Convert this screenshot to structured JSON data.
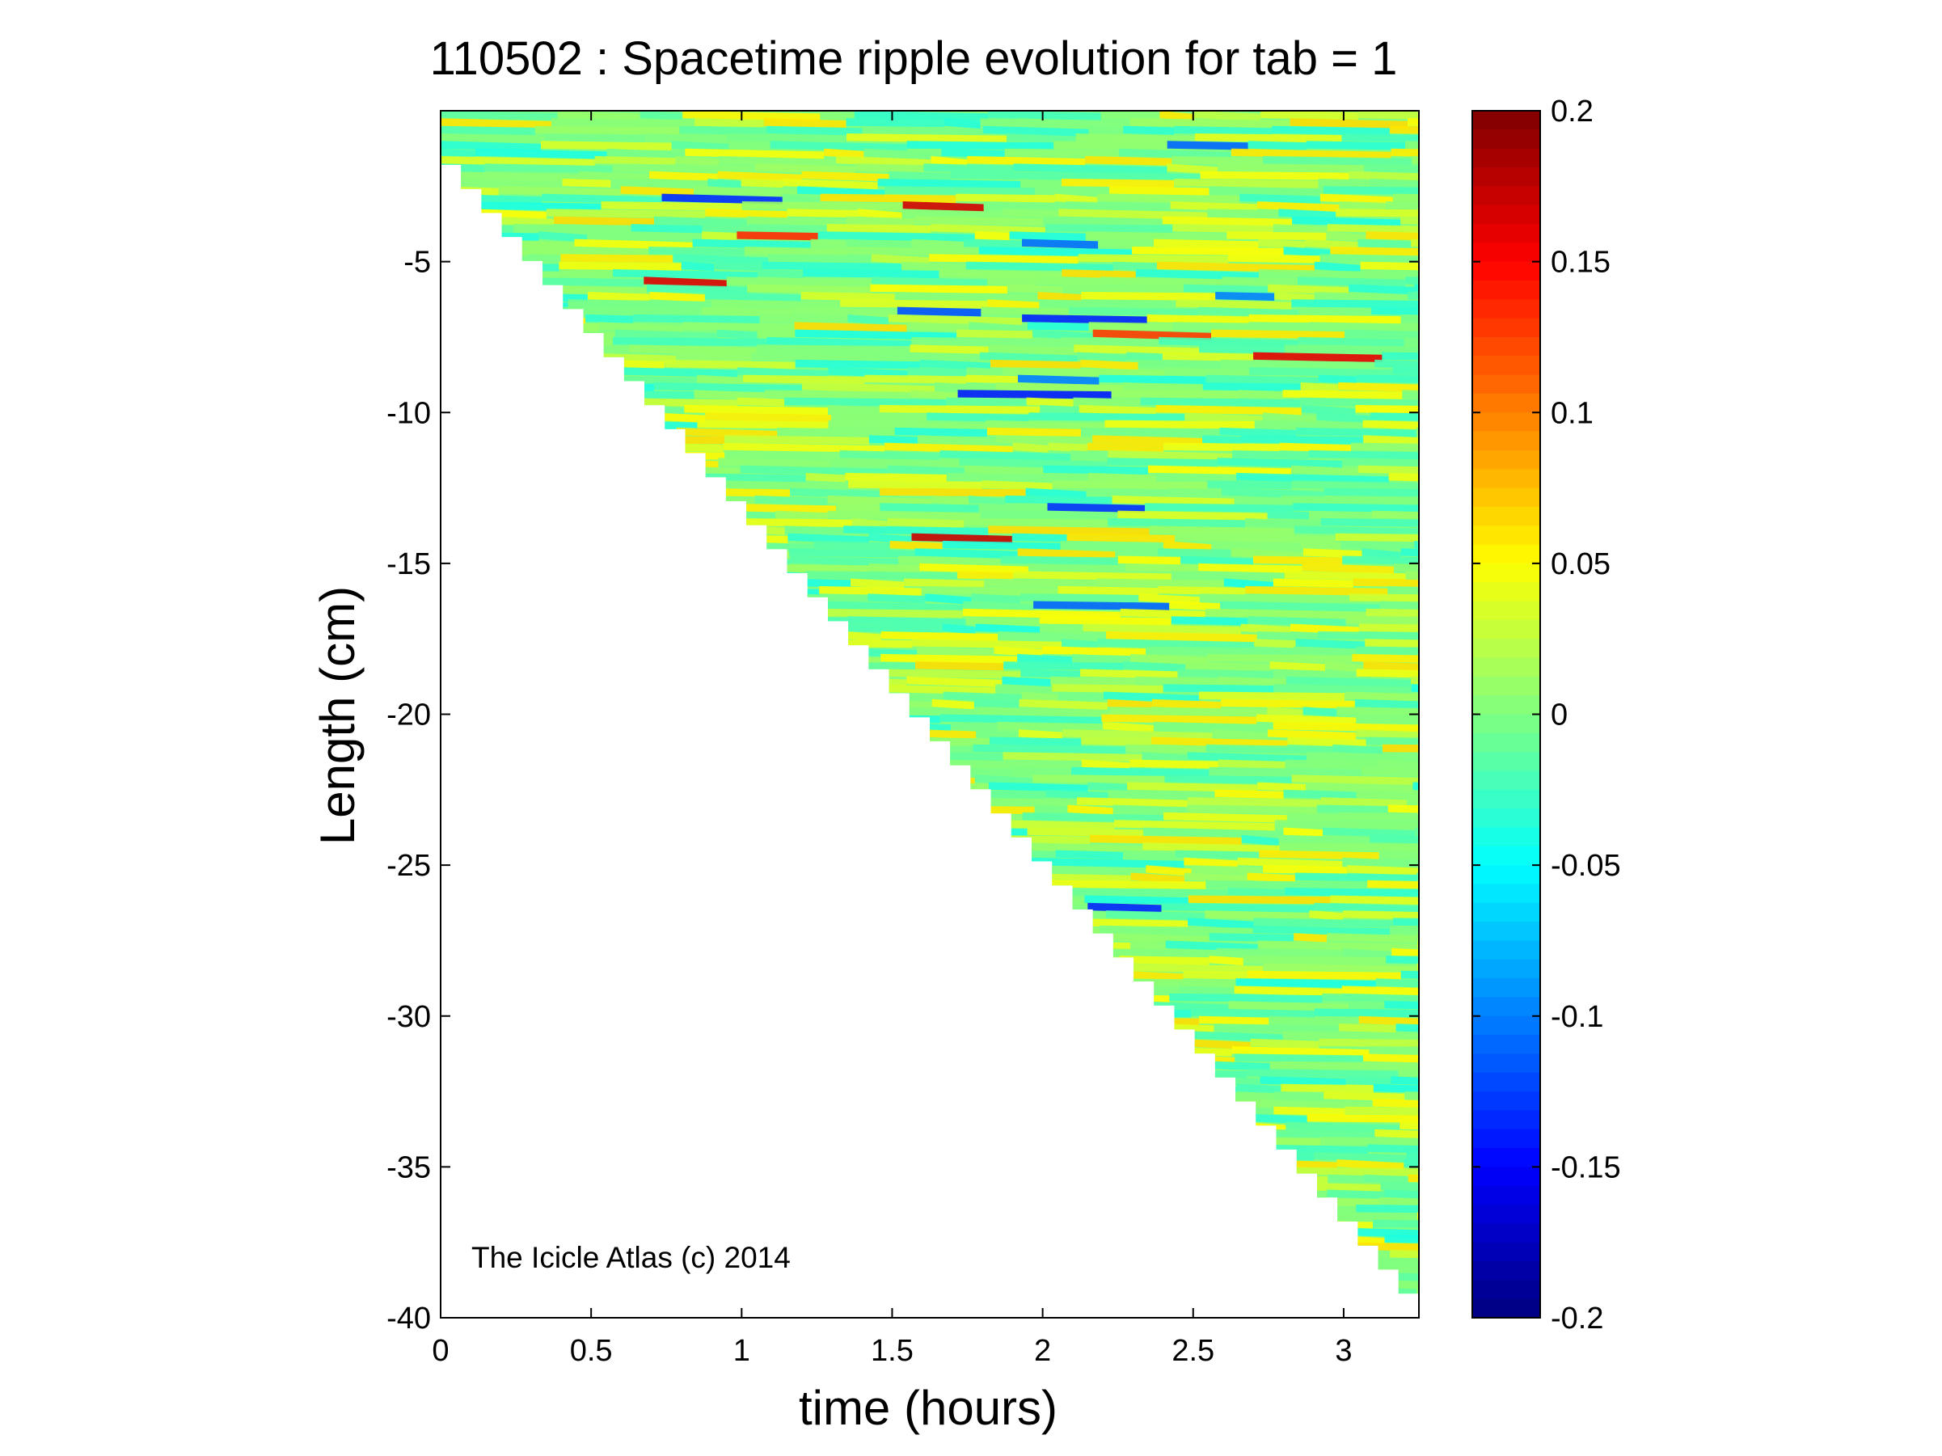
{
  "chart_data": {
    "type": "heatmap",
    "title": "110502 : Spacetime ripple evolution for tab = 1",
    "xlabel": "time (hours)",
    "ylabel": "Length (cm)",
    "xlim": [
      0,
      3.25
    ],
    "ylim": [
      -40,
      0
    ],
    "xticks": [
      0,
      0.5,
      1,
      1.5,
      2,
      2.5,
      3
    ],
    "xtick_labels": [
      "0",
      "0.5",
      "1",
      "1.5",
      "2",
      "2.5",
      "3"
    ],
    "yticks": [
      -5,
      -10,
      -15,
      -20,
      -25,
      -30,
      -35,
      -40
    ],
    "ytick_labels": [
      "-5",
      "-10",
      "-15",
      "-20",
      "-25",
      "-30",
      "-35",
      "-40"
    ],
    "colorbar": {
      "colormap": "jet",
      "clim": [
        -0.2,
        0.2
      ],
      "ticks": [
        0.2,
        0.15,
        0.1,
        0.05,
        0,
        -0.05,
        -0.1,
        -0.15,
        -0.2
      ],
      "tick_labels": [
        "0.2",
        "0.15",
        "0.1",
        "0.05",
        "0",
        "-0.05",
        "-0.1",
        "-0.15",
        "-0.2"
      ]
    },
    "grid": false,
    "data_region": "icicle length grows roughly linearly with time: tip at about -1 cm at t=0 reaching about -39 cm at t=3.25 h; ripple amplitude mostly within -0.05 to 0.05",
    "annotations": [
      "The Icicle Atlas (c) 2014"
    ]
  }
}
